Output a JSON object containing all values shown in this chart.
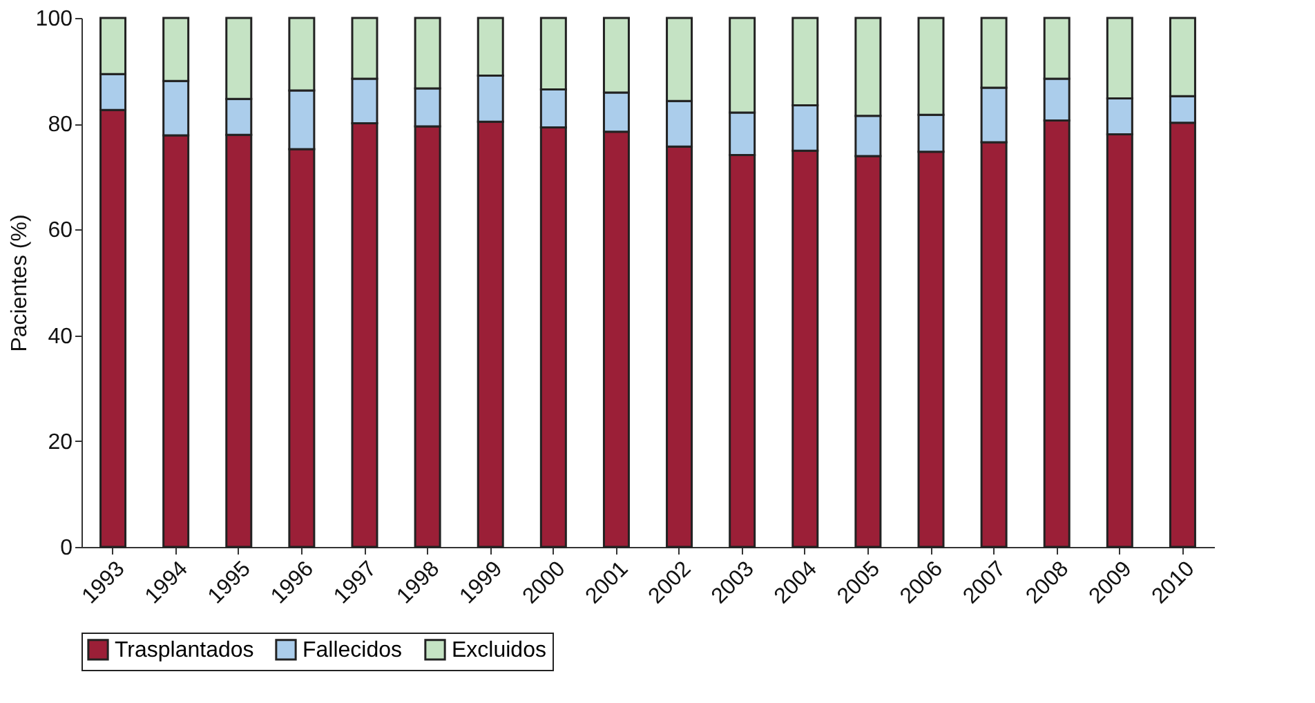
{
  "chart_data": {
    "type": "bar",
    "stacked": true,
    "ylabel": "Pacientes (%)",
    "categories": [
      "1993",
      "1994",
      "1995",
      "1996",
      "1997",
      "1998",
      "1999",
      "2000",
      "2001",
      "2002",
      "2003",
      "2004",
      "2005",
      "2006",
      "2007",
      "2008",
      "2009",
      "2010"
    ],
    "series": [
      {
        "name": "Trasplantados",
        "color": "#9b1f37",
        "values": [
          82.6,
          77.8,
          77.9,
          75.2,
          80.1,
          79.5,
          80.4,
          79.3,
          78.5,
          75.7,
          74.1,
          74.9,
          73.9,
          74.7,
          76.5,
          80.6,
          78.0,
          80.2
        ]
      },
      {
        "name": "Fallecidos",
        "color": "#abcdeb",
        "values": [
          6.8,
          10.3,
          6.8,
          11.1,
          8.4,
          7.2,
          8.7,
          7.2,
          7.4,
          8.6,
          8.0,
          8.6,
          7.6,
          7.0,
          10.3,
          7.9,
          6.8,
          5.0
        ]
      },
      {
        "name": "Excluidos",
        "color": "#c5e3c4",
        "values": [
          10.6,
          11.9,
          15.3,
          13.7,
          11.5,
          13.3,
          10.9,
          13.5,
          14.1,
          15.7,
          17.9,
          16.5,
          18.5,
          18.3,
          13.2,
          11.5,
          15.2,
          14.8
        ]
      }
    ],
    "ylim": [
      0,
      100
    ],
    "yticks": [
      0,
      20,
      40,
      60,
      80,
      100
    ],
    "grid": false,
    "legend": "bottom"
  }
}
